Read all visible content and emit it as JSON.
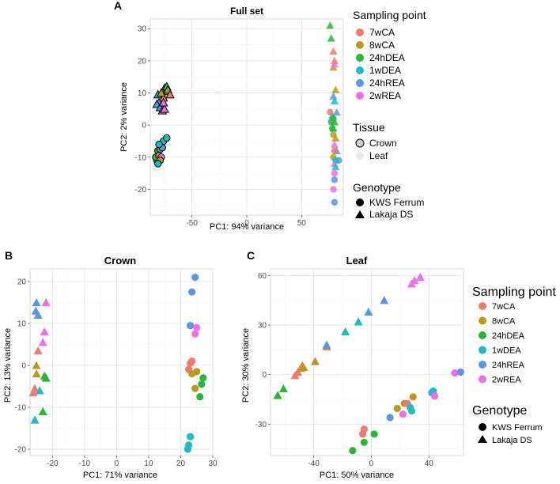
{
  "colors": {
    "7wCA": "#F07970",
    "8wCA": "#B89B1C",
    "24hDEA": "#27B53A",
    "1wDEA": "#1CBCC0",
    "24hREA": "#5A95E6",
    "2wREA": "#EE6FE3"
  },
  "sampling_points": [
    "7wCA",
    "8wCA",
    "24hDEA",
    "1wDEA",
    "24hREA",
    "2wREA"
  ],
  "legend_main": {
    "sampling_title": "Sampling point",
    "tissue_title": "Tissue",
    "tissues": [
      "Crown",
      "Leaf"
    ],
    "genotype_title": "Genotype",
    "genotypes": [
      "KWS Ferrum",
      "Lakaja DS"
    ]
  },
  "legend_right": {
    "sampling_title": "Sampling point",
    "genotype_title": "Genotype",
    "genotypes": [
      "KWS Ferrum",
      "Lakaja DS"
    ]
  },
  "chart_data": [
    {
      "panel": "A",
      "type": "scatter",
      "title": "Full set",
      "xlabel": "PC1: 94% variance",
      "ylabel": "PC2: 2% variance",
      "xlim": [
        -88,
        88
      ],
      "ylim": [
        -28,
        33
      ],
      "xticks": [
        -50,
        0,
        50
      ],
      "yticks": [
        -20,
        -10,
        0,
        10,
        20,
        30
      ],
      "points": [
        {
          "x": -78,
          "y": 6.5,
          "g": "8wCA",
          "s": "tri",
          "t": "Crown"
        },
        {
          "x": -76,
          "y": 8.5,
          "g": "7wCA",
          "s": "tri",
          "t": "Crown"
        },
        {
          "x": -75,
          "y": 11.5,
          "g": "8wCA",
          "s": "tri",
          "t": "Crown"
        },
        {
          "x": -74,
          "y": 10.5,
          "g": "24hDEA",
          "s": "tri",
          "t": "Crown"
        },
        {
          "x": -73,
          "y": 12,
          "g": "1wDEA",
          "s": "tri",
          "t": "Crown"
        },
        {
          "x": -72,
          "y": 11,
          "g": "8wCA",
          "s": "tri",
          "t": "Crown"
        },
        {
          "x": -70,
          "y": 9.5,
          "g": "7wCA",
          "s": "tri",
          "t": "Crown"
        },
        {
          "x": -80,
          "y": 7,
          "g": "24hREA",
          "s": "tri",
          "t": "Crown"
        },
        {
          "x": -82,
          "y": 6.5,
          "g": "24hREA",
          "s": "tri",
          "t": "Crown"
        },
        {
          "x": -79,
          "y": 5.5,
          "g": "24hREA",
          "s": "tri",
          "t": "Crown"
        },
        {
          "x": -77,
          "y": 4.5,
          "g": "2wREA",
          "s": "tri",
          "t": "Crown"
        },
        {
          "x": -75,
          "y": 5,
          "g": "2wREA",
          "s": "tri",
          "t": "Crown"
        },
        {
          "x": -76,
          "y": 7,
          "g": "2wREA",
          "s": "tri",
          "t": "Crown"
        },
        {
          "x": -81,
          "y": 9.5,
          "g": "1wDEA",
          "s": "tri",
          "t": "Crown"
        },
        {
          "x": -78,
          "y": 10,
          "g": "8wCA",
          "s": "tri",
          "t": "Crown"
        },
        {
          "x": -82,
          "y": -11,
          "g": "24hDEA",
          "s": "circ",
          "t": "Crown"
        },
        {
          "x": -83,
          "y": -10,
          "g": "24hDEA",
          "s": "circ",
          "t": "Crown"
        },
        {
          "x": -81,
          "y": -8,
          "g": "24hDEA",
          "s": "circ",
          "t": "Crown"
        },
        {
          "x": -79,
          "y": -7.5,
          "g": "24hDEA",
          "s": "circ",
          "t": "Crown"
        },
        {
          "x": -80,
          "y": -9.5,
          "g": "7wCA",
          "s": "circ",
          "t": "Crown"
        },
        {
          "x": -78,
          "y": -10,
          "g": "2wREA",
          "s": "circ",
          "t": "Crown"
        },
        {
          "x": -77,
          "y": -7,
          "g": "24hREA",
          "s": "circ",
          "t": "Crown"
        },
        {
          "x": -76,
          "y": -5,
          "g": "1wDEA",
          "s": "circ",
          "t": "Crown"
        },
        {
          "x": -73,
          "y": -4,
          "g": "1wDEA",
          "s": "circ",
          "t": "Crown"
        },
        {
          "x": -80,
          "y": -6,
          "g": "1wDEA",
          "s": "circ",
          "t": "Crown"
        },
        {
          "x": -79,
          "y": -11,
          "g": "8wCA",
          "s": "circ",
          "t": "Crown"
        },
        {
          "x": -81,
          "y": -12,
          "g": "1wDEA",
          "s": "circ",
          "t": "Crown"
        },
        {
          "x": 76,
          "y": 31,
          "g": "24hDEA",
          "s": "tri",
          "t": "Leaf"
        },
        {
          "x": 77,
          "y": 27,
          "g": "24hDEA",
          "s": "tri",
          "t": "Leaf"
        },
        {
          "x": 79,
          "y": 23,
          "g": "7wCA",
          "s": "tri",
          "t": "Leaf"
        },
        {
          "x": 80,
          "y": 20,
          "g": "7wCA",
          "s": "tri",
          "t": "Leaf"
        },
        {
          "x": 79,
          "y": 18,
          "g": "8wCA",
          "s": "tri",
          "t": "Leaf"
        },
        {
          "x": 80,
          "y": 19,
          "g": "2wREA",
          "s": "tri",
          "t": "Leaf"
        },
        {
          "x": 81,
          "y": 11,
          "g": "8wCA",
          "s": "tri",
          "t": "Leaf"
        },
        {
          "x": 79,
          "y": 9,
          "g": "24hREA",
          "s": "tri",
          "t": "Leaf"
        },
        {
          "x": 80,
          "y": 7.5,
          "g": "1wDEA",
          "s": "tri",
          "t": "Leaf"
        },
        {
          "x": 82,
          "y": 4,
          "g": "24hREA",
          "s": "tri",
          "t": "Leaf"
        },
        {
          "x": 78,
          "y": 3,
          "g": "1wDEA",
          "s": "tri",
          "t": "Leaf"
        },
        {
          "x": 80,
          "y": 1,
          "g": "24hDEA",
          "s": "tri",
          "t": "Leaf"
        },
        {
          "x": 79,
          "y": -1,
          "g": "24hDEA",
          "s": "tri",
          "t": "Leaf"
        },
        {
          "x": 81,
          "y": -4,
          "g": "8wCA",
          "s": "tri",
          "t": "Leaf"
        },
        {
          "x": 80,
          "y": -6,
          "g": "2wREA",
          "s": "tri",
          "t": "Leaf"
        },
        {
          "x": 82,
          "y": -8,
          "g": "1wDEA",
          "s": "tri",
          "t": "Leaf"
        },
        {
          "x": 80,
          "y": -12,
          "g": "2wREA",
          "s": "tri",
          "t": "Leaf"
        },
        {
          "x": 81,
          "y": -13,
          "g": "1wDEA",
          "s": "tri",
          "t": "Leaf"
        },
        {
          "x": 76,
          "y": 4,
          "g": "7wCA",
          "s": "circ",
          "t": "Leaf"
        },
        {
          "x": 79,
          "y": 2,
          "g": "24hDEA",
          "s": "circ",
          "t": "Leaf"
        },
        {
          "x": 77,
          "y": 1,
          "g": "24hDEA",
          "s": "circ",
          "t": "Leaf"
        },
        {
          "x": 78,
          "y": -1,
          "g": "24hDEA",
          "s": "circ",
          "t": "Leaf"
        },
        {
          "x": 79,
          "y": -3,
          "g": "8wCA",
          "s": "circ",
          "t": "Leaf"
        },
        {
          "x": 80,
          "y": -8,
          "g": "7wCA",
          "s": "circ",
          "t": "Leaf"
        },
        {
          "x": 79,
          "y": -10,
          "g": "8wCA",
          "s": "circ",
          "t": "Leaf"
        },
        {
          "x": 80,
          "y": -15,
          "g": "2wREA",
          "s": "circ",
          "t": "Leaf"
        },
        {
          "x": 84,
          "y": -11,
          "g": "24hREA",
          "s": "circ",
          "t": "Leaf"
        },
        {
          "x": 81,
          "y": -11,
          "g": "1wDEA",
          "s": "circ",
          "t": "Leaf"
        },
        {
          "x": 80,
          "y": -17,
          "g": "24hREA",
          "s": "circ",
          "t": "Leaf"
        },
        {
          "x": 79,
          "y": -20,
          "g": "2wREA",
          "s": "circ",
          "t": "Leaf"
        },
        {
          "x": 80,
          "y": -24,
          "g": "24hREA",
          "s": "circ",
          "t": "Leaf"
        }
      ]
    },
    {
      "panel": "B",
      "type": "scatter",
      "title": "Crown",
      "xlabel": "PC1: 71% variance",
      "ylabel": "PC2: 13% variance",
      "xlim": [
        -27,
        30
      ],
      "ylim": [
        -21.5,
        23
      ],
      "xticks": [
        -20,
        -10,
        0,
        10,
        20,
        30
      ],
      "yticks": [
        -20,
        -10,
        0,
        10,
        20
      ],
      "points": [
        {
          "x": -26,
          "y": -6.5,
          "g": "7wCA",
          "s": "tri"
        },
        {
          "x": -25.5,
          "y": -5.5,
          "g": "7wCA",
          "s": "tri"
        },
        {
          "x": -25,
          "y": -2,
          "g": "8wCA",
          "s": "tri"
        },
        {
          "x": -25,
          "y": 0,
          "g": "8wCA",
          "s": "tri"
        },
        {
          "x": -24.5,
          "y": 3.5,
          "g": "7wCA",
          "s": "tri"
        },
        {
          "x": -24,
          "y": -6,
          "g": "1wDEA",
          "s": "tri"
        },
        {
          "x": -25.5,
          "y": -13,
          "g": "1wDEA",
          "s": "tri"
        },
        {
          "x": -23,
          "y": -11,
          "g": "24hDEA",
          "s": "tri"
        },
        {
          "x": -22,
          "y": -3,
          "g": "24hDEA",
          "s": "tri"
        },
        {
          "x": -22.5,
          "y": -2.5,
          "g": "24hDEA",
          "s": "tri"
        },
        {
          "x": -23,
          "y": 5.5,
          "g": "2wREA",
          "s": "tri"
        },
        {
          "x": -22.5,
          "y": 8,
          "g": "2wREA",
          "s": "tri"
        },
        {
          "x": -22,
          "y": 15,
          "g": "2wREA",
          "s": "tri"
        },
        {
          "x": -25,
          "y": 15,
          "g": "24hREA",
          "s": "tri"
        },
        {
          "x": -25.2,
          "y": 13,
          "g": "24hREA",
          "s": "tri"
        },
        {
          "x": -24.5,
          "y": 12,
          "g": "24hREA",
          "s": "tri"
        },
        {
          "x": 24.5,
          "y": 21,
          "g": "24hREA",
          "s": "circ"
        },
        {
          "x": 23.5,
          "y": 17.5,
          "g": "24hREA",
          "s": "circ"
        },
        {
          "x": 23,
          "y": 9.5,
          "g": "24hREA",
          "s": "circ"
        },
        {
          "x": 25,
          "y": 9,
          "g": "2wREA",
          "s": "circ"
        },
        {
          "x": 24.5,
          "y": 7.5,
          "g": "2wREA",
          "s": "circ"
        },
        {
          "x": 23,
          "y": 0.5,
          "g": "7wCA",
          "s": "circ"
        },
        {
          "x": 23.5,
          "y": 1,
          "g": "7wCA",
          "s": "circ"
        },
        {
          "x": 22.5,
          "y": -1,
          "g": "7wCA",
          "s": "circ"
        },
        {
          "x": 23.5,
          "y": -2,
          "g": "8wCA",
          "s": "circ"
        },
        {
          "x": 25,
          "y": -1.5,
          "g": "8wCA",
          "s": "circ"
        },
        {
          "x": 24.5,
          "y": -5.5,
          "g": "8wCA",
          "s": "circ"
        },
        {
          "x": 27,
          "y": -3,
          "g": "24hDEA",
          "s": "circ"
        },
        {
          "x": 26.5,
          "y": -4.5,
          "g": "24hDEA",
          "s": "circ"
        },
        {
          "x": 26,
          "y": -7.5,
          "g": "24hDEA",
          "s": "circ"
        },
        {
          "x": 23,
          "y": -17,
          "g": "1wDEA",
          "s": "circ"
        },
        {
          "x": 22.5,
          "y": -19,
          "g": "1wDEA",
          "s": "circ"
        },
        {
          "x": 22.2,
          "y": -20,
          "g": "1wDEA",
          "s": "circ"
        }
      ]
    },
    {
      "panel": "C",
      "type": "scatter",
      "title": "Leaf",
      "xlabel": "PC1: 50% variance",
      "ylabel": "PC2: 30% variance",
      "xlim": [
        -70,
        64
      ],
      "ylim": [
        -49,
        64
      ],
      "xticks": [
        -40,
        0,
        40
      ],
      "yticks": [
        -30,
        0,
        30,
        60
      ],
      "points": [
        {
          "x": -65,
          "y": -12.5,
          "g": "24hDEA",
          "s": "tri"
        },
        {
          "x": -61,
          "y": -8.5,
          "g": "24hDEA",
          "s": "tri"
        },
        {
          "x": -53,
          "y": -0.5,
          "g": "7wCA",
          "s": "tri"
        },
        {
          "x": -51,
          "y": 1.5,
          "g": "7wCA",
          "s": "tri"
        },
        {
          "x": -49,
          "y": 4,
          "g": "8wCA",
          "s": "tri"
        },
        {
          "x": -48,
          "y": 5.5,
          "g": "7wCA",
          "s": "tri"
        },
        {
          "x": -47,
          "y": 4.5,
          "g": "8wCA",
          "s": "tri"
        },
        {
          "x": -39,
          "y": 8,
          "g": "8wCA",
          "s": "tri"
        },
        {
          "x": -31,
          "y": 17,
          "g": "8wCA",
          "s": "tri"
        },
        {
          "x": -31,
          "y": 18,
          "g": "24hREA",
          "s": "tri"
        },
        {
          "x": -18,
          "y": 26,
          "g": "1wDEA",
          "s": "tri"
        },
        {
          "x": -9,
          "y": 32,
          "g": "1wDEA",
          "s": "tri"
        },
        {
          "x": -2,
          "y": 38,
          "g": "24hREA",
          "s": "tri"
        },
        {
          "x": 9,
          "y": 45,
          "g": "24hREA",
          "s": "tri"
        },
        {
          "x": 28,
          "y": 55,
          "g": "2wREA",
          "s": "tri"
        },
        {
          "x": 30,
          "y": 57,
          "g": "2wREA",
          "s": "tri"
        },
        {
          "x": 34,
          "y": 59,
          "g": "2wREA",
          "s": "tri"
        },
        {
          "x": -13,
          "y": -46,
          "g": "24hDEA",
          "s": "circ"
        },
        {
          "x": -5,
          "y": -41,
          "g": "24hDEA",
          "s": "circ"
        },
        {
          "x": -6,
          "y": -36,
          "g": "7wCA",
          "s": "circ"
        },
        {
          "x": -5,
          "y": -33,
          "g": "7wCA",
          "s": "circ"
        },
        {
          "x": 2,
          "y": -36,
          "g": "24hDEA",
          "s": "circ"
        },
        {
          "x": 13,
          "y": -26,
          "g": "24hREA",
          "s": "circ"
        },
        {
          "x": 18,
          "y": -20.5,
          "g": "8wCA",
          "s": "circ"
        },
        {
          "x": 22,
          "y": -24,
          "g": "2wREA",
          "s": "circ"
        },
        {
          "x": 23,
          "y": -17.5,
          "g": "8wCA",
          "s": "circ"
        },
        {
          "x": 25,
          "y": -17.5,
          "g": "7wCA",
          "s": "circ"
        },
        {
          "x": 27,
          "y": -20,
          "g": "1wDEA",
          "s": "circ"
        },
        {
          "x": 28,
          "y": -22,
          "g": "1wDEA",
          "s": "circ"
        },
        {
          "x": 29,
          "y": -13.5,
          "g": "8wCA",
          "s": "circ"
        },
        {
          "x": 42,
          "y": -11,
          "g": "24hREA",
          "s": "circ"
        },
        {
          "x": 43,
          "y": -10,
          "g": "1wDEA",
          "s": "circ"
        },
        {
          "x": 44,
          "y": -13,
          "g": "2wREA",
          "s": "circ"
        },
        {
          "x": 58,
          "y": 1,
          "g": "2wREA",
          "s": "circ"
        },
        {
          "x": 62,
          "y": 1.5,
          "g": "24hREA",
          "s": "circ"
        }
      ]
    }
  ]
}
